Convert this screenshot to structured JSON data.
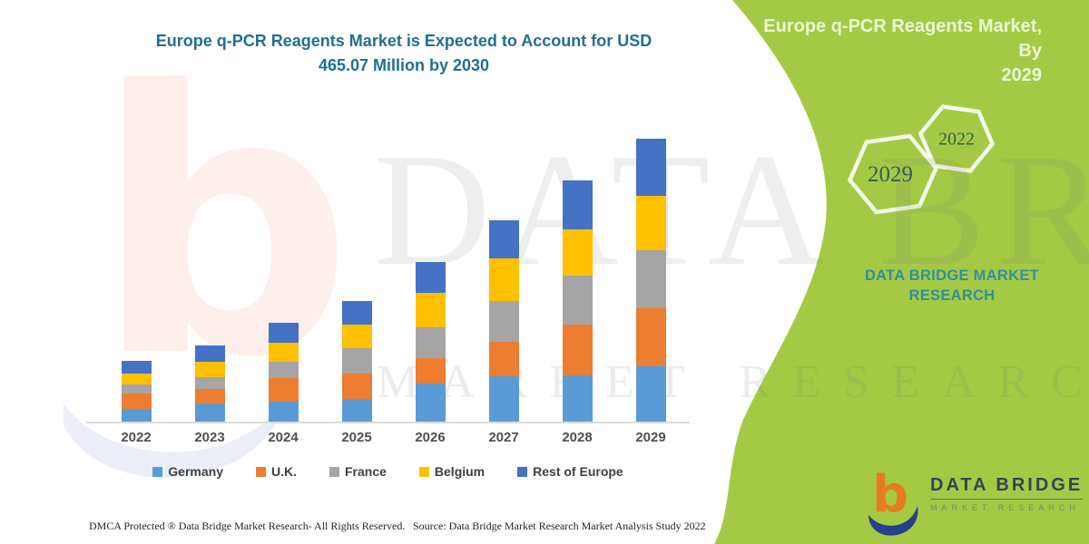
{
  "title": "Europe q-PCR Reagents Market is Expected to Account for USD 465.07 Million by 2030",
  "side_panel": {
    "heading_line1": "Europe q-PCR Reagents Market, By",
    "heading_line2": "2029",
    "hexagons": [
      {
        "label": "2029"
      },
      {
        "label": "2022"
      }
    ],
    "brand_caption": "DATA BRIDGE MARKET RESEARCH",
    "accent_green": "#A4CA45",
    "caption_teal": "#338E9E"
  },
  "watermark": {
    "logo_glyph": "b",
    "brand": "DATA BRIDGE",
    "sub": "MARKET RESEARCH"
  },
  "footer": {
    "dmca": "DMCA Protected ® Data Bridge Market Research-  All Rights Reserved.",
    "source": "Source: Data Bridge Market Research  Market Analysis Study 2022"
  },
  "logo": {
    "name": "DATA BRIDGE",
    "subtitle": "MARKET RESEARCH"
  },
  "chart_data": {
    "type": "bar",
    "stacked": true,
    "title": "Europe q-PCR Reagents Market is Expected to Account for USD 465.07 Million by 2030",
    "categories": [
      "2022",
      "2023",
      "2024",
      "2025",
      "2026",
      "2027",
      "2028",
      "2029"
    ],
    "series": [
      {
        "name": "Germany",
        "color": "#5B9BD5",
        "values": [
          14,
          20,
          22,
          25,
          42,
          50,
          51,
          61
        ]
      },
      {
        "name": "U.K.",
        "color": "#ED7D31",
        "values": [
          17,
          16,
          26,
          28,
          28,
          38,
          56,
          64
        ]
      },
      {
        "name": "France",
        "color": "#A5A5A5",
        "values": [
          10,
          13,
          18,
          28,
          34,
          45,
          54,
          64
        ]
      },
      {
        "name": "Belgium",
        "color": "#FFC000",
        "values": [
          12,
          17,
          21,
          26,
          38,
          47,
          51,
          60
        ]
      },
      {
        "name": "Rest of Europe",
        "color": "#4472C4",
        "values": [
          14,
          18,
          22,
          26,
          34,
          42,
          54,
          63
        ]
      }
    ],
    "xlabel": "",
    "ylabel": "",
    "ylim": [
      0,
      340
    ],
    "units": "relative stacked heights (no y-axis ticks shown in figure)",
    "grid": false,
    "legend_position": "bottom"
  }
}
